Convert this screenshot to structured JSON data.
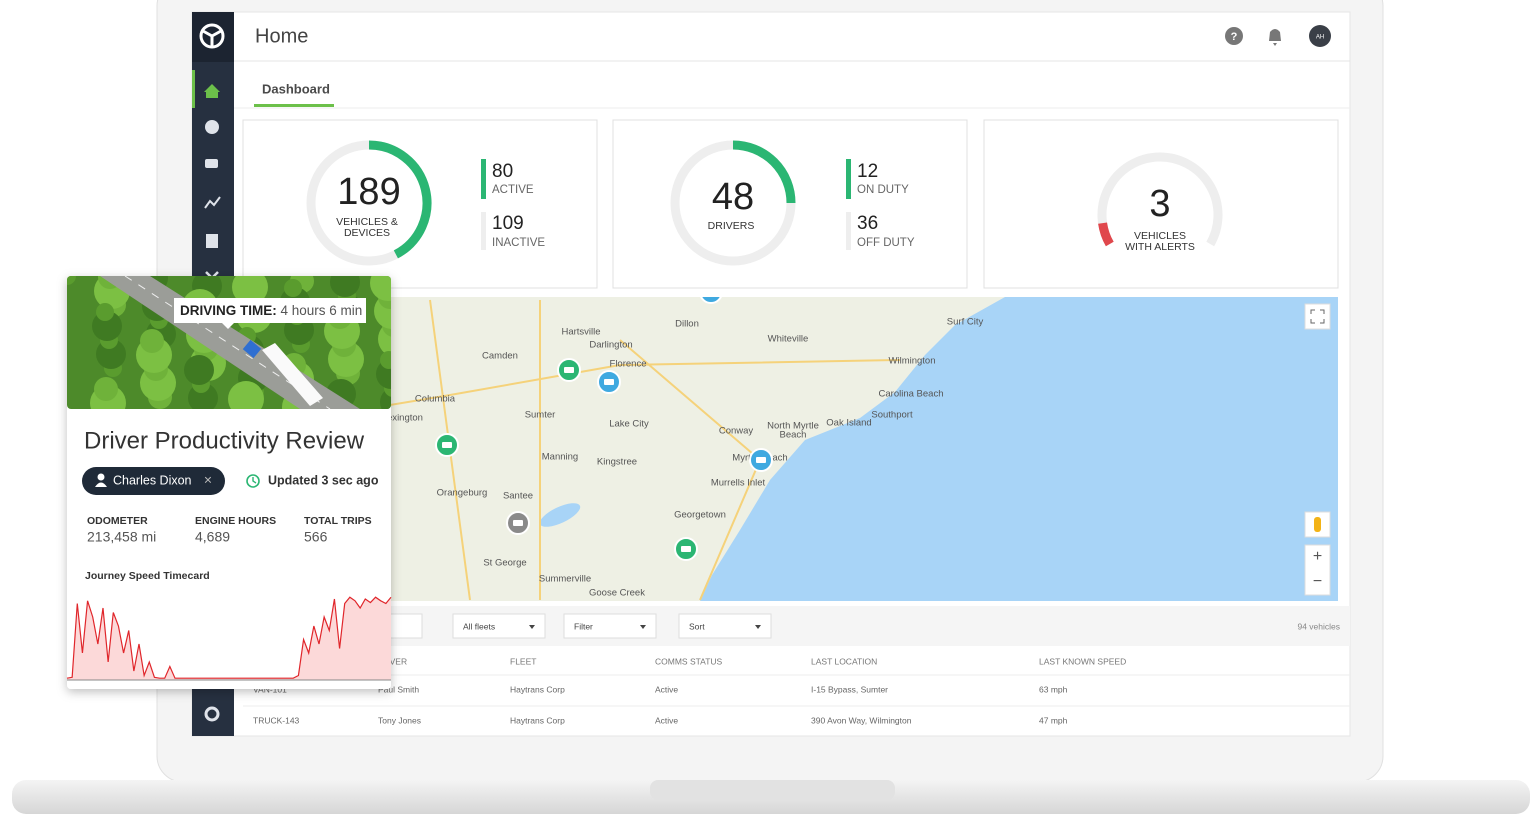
{
  "header": {
    "title": "Home",
    "help_icon": "?",
    "avatar": "AH"
  },
  "tabs": [
    "Dashboard"
  ],
  "cards": {
    "vehicles": {
      "total": 189,
      "label": [
        "VEHICLES &",
        "DEVICES"
      ],
      "active": 80,
      "active_label": "ACTIVE",
      "inactive": 109,
      "inactive_label": "INACTIVE"
    },
    "drivers": {
      "total": 48,
      "label": "DRIVERS",
      "on_duty": 12,
      "on_duty_label": "ON DUTY",
      "off_duty": 36,
      "off_duty_label": "OFF DUTY"
    },
    "alerts": {
      "total": 3,
      "label": [
        "VEHICLES",
        "WITH ALERTS"
      ]
    }
  },
  "map": {
    "labels": [
      "Columbia",
      "Florence",
      "Sumter",
      "Manning",
      "Kingstree",
      "Lake City",
      "Conway",
      "Myrtle Beach",
      "Murrells Inlet",
      "Georgetown",
      "Wilmington",
      "Carolina Beach",
      "Southport",
      "Oak Island",
      "North Myrtle",
      "Beach",
      "Whiteville",
      "Darlington",
      "Hartsville",
      "Camden",
      "Dillon",
      "Orangeburg",
      "Santee",
      "St George",
      "Summerville",
      "Goose Creek",
      "Surf City",
      "exington"
    ],
    "zoom_in": "+",
    "zoom_out": "−"
  },
  "toolbar": {
    "filters": [
      "All fleets",
      "Filter",
      "Sort"
    ],
    "count": "94 vehicles"
  },
  "table": {
    "columns": [
      "DRIVER",
      "FLEET",
      "COMMS STATUS",
      "LAST LOCATION",
      "LAST KNOWN SPEED"
    ],
    "rows": [
      [
        "VAN-101",
        "Paul Smith",
        "Haytrans Corp",
        "Active",
        "I-15 Bypass, Sumter",
        "63 mph"
      ],
      [
        "TRUCK-143",
        "Tony Jones",
        "Haytrans Corp",
        "Active",
        "390 Avon Way, Wilmington",
        "47 mph"
      ]
    ]
  },
  "popup": {
    "driving_time_label": "DRIVING TIME:",
    "driving_time": "4 hours 6 min",
    "title": "Driver Productivity Review",
    "driver": "Charles Dixon",
    "close": "×",
    "updated": "Updated 3 sec ago",
    "stats": [
      {
        "label": "ODOMETER",
        "value": "213,458 mi"
      },
      {
        "label": "ENGINE HOURS",
        "value": "4,689"
      },
      {
        "label": "TOTAL TRIPS",
        "value": "566"
      }
    ],
    "chart": {
      "type": "area",
      "title": "Journey Speed Timecard",
      "values": [
        2,
        3,
        85,
        30,
        88,
        70,
        40,
        80,
        20,
        75,
        60,
        30,
        55,
        10,
        40,
        5,
        20,
        3,
        2,
        2,
        15,
        2,
        2,
        2,
        2,
        2,
        2,
        2,
        2,
        2,
        2,
        2,
        2,
        2,
        2,
        2,
        2,
        2,
        2,
        2,
        2,
        2,
        2,
        2,
        2,
        5,
        45,
        30,
        60,
        40,
        70,
        55,
        90,
        35,
        85,
        92,
        88,
        80,
        90,
        86,
        92,
        88,
        85,
        92
      ]
    }
  }
}
